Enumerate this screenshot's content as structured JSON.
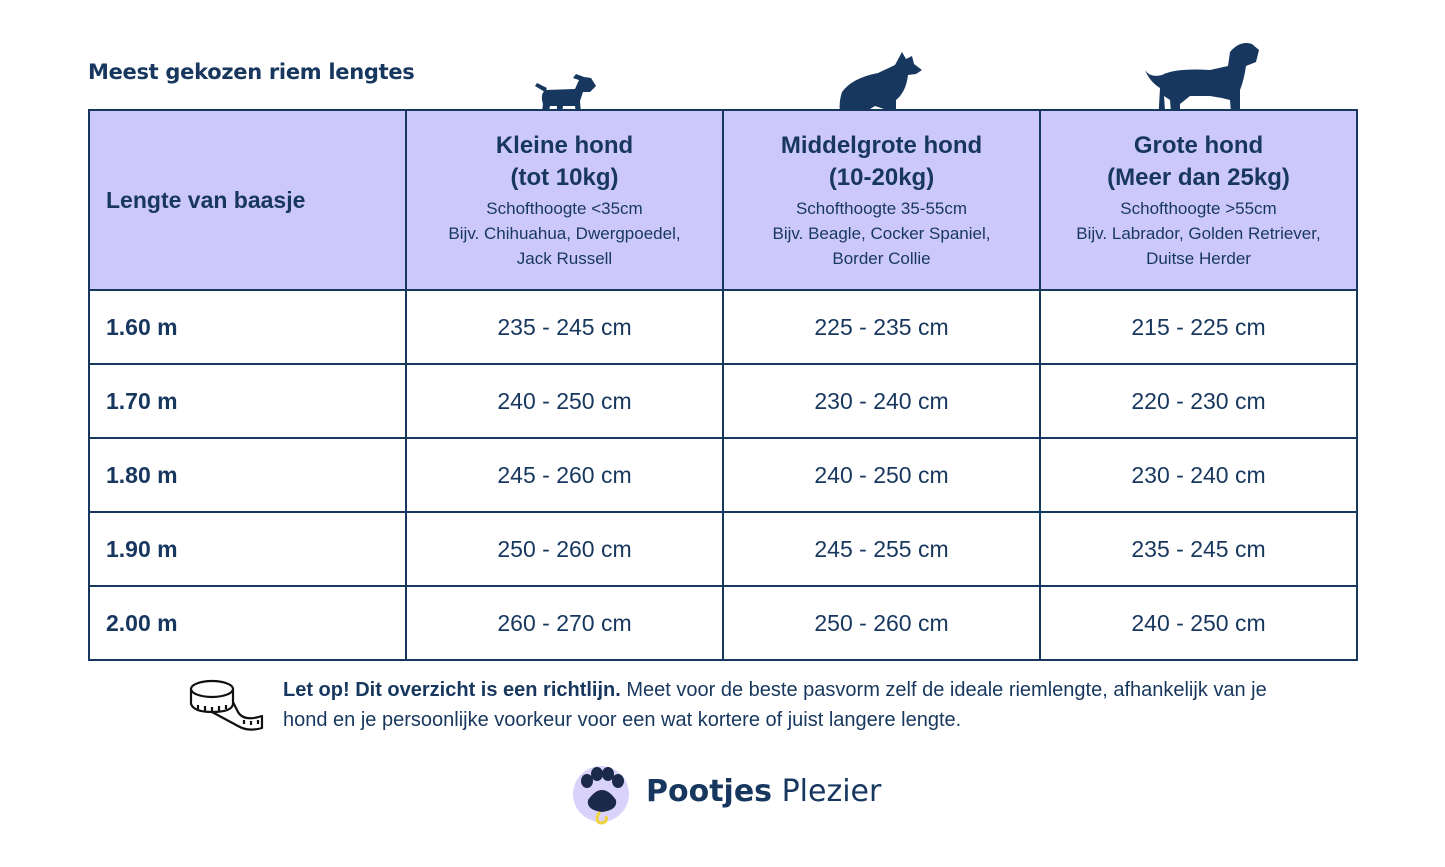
{
  "header": {
    "title": "Meest gekozen riem lengtes"
  },
  "table": {
    "corner": "Lengte van baasje",
    "columns": [
      {
        "title": [
          "Kleine hond",
          "(tot 10kg)"
        ],
        "details": [
          "Schofthoogte <35cm",
          "Bijv. Chihuahua, Dwergpoedel,",
          "Jack Russell"
        ]
      },
      {
        "title": [
          "Middelgrote hond",
          "(10-20kg)"
        ],
        "details": [
          "Schofthoogte 35-55cm",
          "Bijv. Beagle, Cocker Spaniel,",
          "Border Collie"
        ]
      },
      {
        "title": [
          "Grote hond",
          "(Meer dan 25kg)"
        ],
        "details": [
          "Schofthoogte >55cm",
          "Bijv. Labrador, Golden Retriever,",
          "Duitse Herder"
        ]
      }
    ],
    "rows": [
      [
        "1.60 m",
        "235 - 245 cm",
        "225 - 235 cm",
        "215 - 225 cm"
      ],
      [
        "1.70 m",
        "240 - 250 cm",
        "230 - 240 cm",
        "220 - 230 cm"
      ],
      [
        "1.80 m",
        "245 - 260 cm",
        "240 - 250 cm",
        "230 - 240 cm"
      ],
      [
        "1.90 m",
        "250 - 260 cm",
        "245 - 255 cm",
        "235 - 245 cm"
      ],
      [
        "2.00 m",
        "260 - 270 cm",
        "250 - 260 cm",
        "240 - 250 cm"
      ]
    ]
  },
  "note": {
    "bold": "Let op! Dit overzicht is een richtlijn.",
    "text": "Meet voor de beste pasvorm zelf de ideale riemlengte, afhankelijk van je hond en je persoonlijke voorkeur voor een wat kortere of juist langere lengte."
  },
  "logo": {
    "bold": "Pootjes",
    "regular": "Plezier"
  }
}
